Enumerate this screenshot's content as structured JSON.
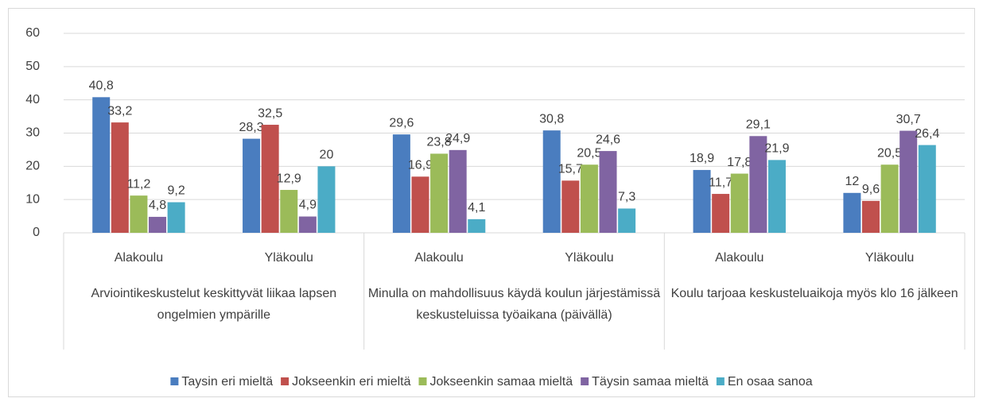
{
  "chart_data": {
    "type": "bar",
    "categories": [
      "Alakoulu",
      "Yläkoulu",
      "Alakoulu",
      "Yläkoulu",
      "Alakoulu",
      "Yläkoulu"
    ],
    "groups": [
      "Arviointikeskustelut keskittyvät liikaa lapsen ongelmien ympärille",
      "Minulla on mahdollisuus käydä koulun järjestämissä keskusteluissa työaikana (päivällä)",
      "Koulu tarjoaa keskusteluaikoja myös klo 16 jälkeen"
    ],
    "series": [
      {
        "name": "Taysin eri mieltä",
        "color": "#4a7dbf",
        "values": [
          40.8,
          28.3,
          29.6,
          30.8,
          18.9,
          12
        ],
        "value_labels": [
          "40,8",
          "28,3",
          "29,6",
          "30,8",
          "18,9",
          "12"
        ]
      },
      {
        "name": "Jokseenkin eri mieltä",
        "color": "#c0504d",
        "values": [
          33.2,
          32.5,
          16.9,
          15.7,
          11.7,
          9.6
        ],
        "value_labels": [
          "33,2",
          "32,5",
          "16,9",
          "15,7",
          "11,7",
          "9,6"
        ]
      },
      {
        "name": "Jokseenkin samaa mieltä",
        "color": "#9bbb59",
        "values": [
          11.2,
          12.9,
          23.8,
          20.5,
          17.8,
          20.5
        ],
        "value_labels": [
          "11,2",
          "12,9",
          "23,8",
          "20,5",
          "17,8",
          "20,5"
        ]
      },
      {
        "name": "Täysin samaa mieltä",
        "color": "#8064a2",
        "values": [
          4.8,
          4.9,
          24.9,
          24.6,
          29.1,
          30.7
        ],
        "value_labels": [
          "4,8",
          "4,9",
          "24,9",
          "24,6",
          "29,1",
          "30,7"
        ]
      },
      {
        "name": "En osaa sanoa",
        "color": "#4bacc6",
        "values": [
          9.2,
          20,
          4.1,
          7.3,
          21.9,
          26.4
        ],
        "value_labels": [
          "9,2",
          "20",
          "4,1",
          "7,3",
          "21,9",
          "26,4"
        ]
      }
    ],
    "ylim": [
      0,
      60
    ],
    "yticks": [
      0,
      10,
      20,
      30,
      40,
      50,
      60
    ],
    "grid": true,
    "legend": "bottom"
  }
}
